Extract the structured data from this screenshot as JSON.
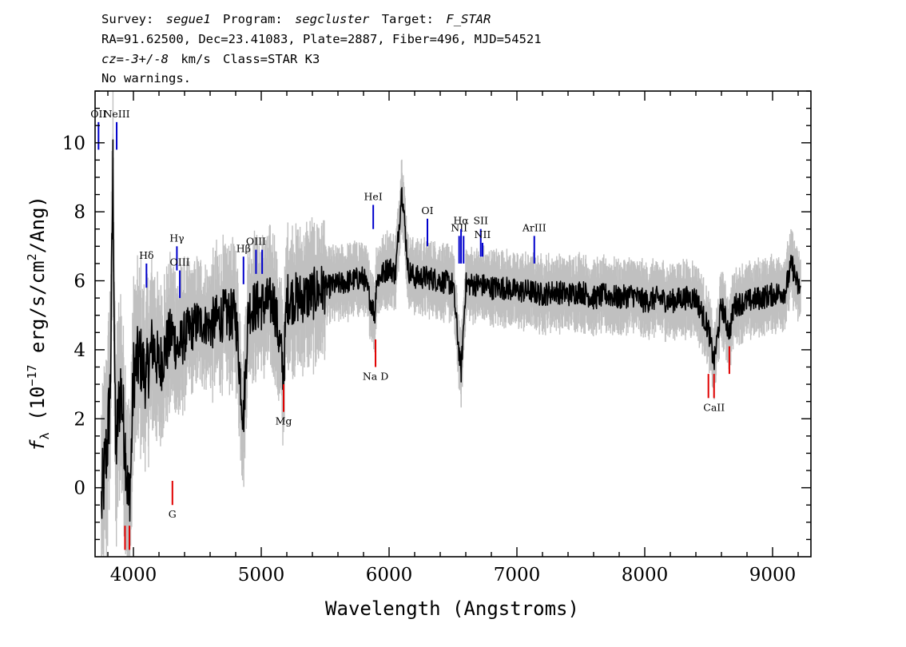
{
  "header": {
    "line1": {
      "survey_label": "Survey:",
      "survey": "segue1",
      "program_label": "Program:",
      "program": "segcluster",
      "target_label": "Target:",
      "target": "F_STAR"
    },
    "line2": "RA=91.62500, Dec=23.41083, Plate=2887, Fiber=496, MJD=54521",
    "line3": {
      "cz_label": "cz",
      "cz_value": "=-3+/-8",
      "cz_unit": "km/s",
      "class_text": "Class=STAR K3"
    },
    "line4": "No warnings."
  },
  "chart_data": {
    "type": "line",
    "xlabel": "Wavelength (Angstroms)",
    "ylabel": {
      "prefix": "f",
      "subscript": "λ",
      "text_pre": " (10",
      "exp": "−17",
      "text_mid": " erg/s/cm",
      "exp2": "2",
      "text_post": "/Ang)"
    },
    "xlim": [
      3700,
      9300
    ],
    "ylim": [
      -2,
      11.5
    ],
    "xticks": [
      4000,
      5000,
      6000,
      7000,
      8000,
      9000
    ],
    "yticks": [
      0,
      2,
      4,
      6,
      8,
      10
    ],
    "grid": false,
    "legend": "none",
    "series": [
      {
        "role": "spectrum",
        "color": "#000000",
        "x": [
          3750,
          3800,
          3820,
          3840,
          3860,
          3880,
          3900,
          3920,
          3940,
          3960,
          3980,
          4000,
          4050,
          4100,
          4150,
          4200,
          4250,
          4300,
          4350,
          4400,
          4450,
          4500,
          4600,
          4700,
          4800,
          4860,
          4900,
          5000,
          5100,
          5175,
          5200,
          5300,
          5400,
          5500,
          5600,
          5700,
          5800,
          5890,
          5900,
          6000,
          6050,
          6100,
          6150,
          6200,
          6300,
          6400,
          6500,
          6563,
          6600,
          6700,
          6800,
          6900,
          7000,
          7100,
          7200,
          7300,
          7400,
          7500,
          7600,
          7700,
          7800,
          7900,
          8000,
          8100,
          8200,
          8300,
          8400,
          8498,
          8542,
          8600,
          8662,
          8700,
          8800,
          8900,
          9000,
          9100,
          9150,
          9200
        ],
        "y": [
          -0.5,
          1.5,
          3.0,
          9.3,
          1.0,
          2.0,
          3.0,
          2.0,
          1.0,
          -0.5,
          0.5,
          3.3,
          3.8,
          3.2,
          4.2,
          3.5,
          4.0,
          4.5,
          4.0,
          4.4,
          4.6,
          4.8,
          4.7,
          5.0,
          5.0,
          2.0,
          5.2,
          5.3,
          5.4,
          3.3,
          5.5,
          5.5,
          5.6,
          5.8,
          5.9,
          6.0,
          6.1,
          5.0,
          6.0,
          6.4,
          6.2,
          8.7,
          6.3,
          6.1,
          6.1,
          6.0,
          5.9,
          3.3,
          5.9,
          5.9,
          5.8,
          5.8,
          5.7,
          5.7,
          5.6,
          5.7,
          5.6,
          5.7,
          5.5,
          5.6,
          5.5,
          5.6,
          5.4,
          5.5,
          5.4,
          5.5,
          5.5,
          4.6,
          3.6,
          5.3,
          4.5,
          5.3,
          5.4,
          5.5,
          5.6,
          5.7,
          6.5,
          5.8
        ]
      }
    ],
    "error_band": {
      "color": "#c0c0c0",
      "sigma_blue": 1.3,
      "sigma_red": 0.35
    },
    "emission_lines": [
      {
        "label": "OII",
        "x": 3727,
        "y0": 9.8,
        "y1": 10.6
      },
      {
        "label": "NeIII",
        "x": 3869,
        "y0": 9.8,
        "y1": 10.6
      },
      {
        "label": "Hδ",
        "x": 4102,
        "y0": 5.8,
        "y1": 6.5
      },
      {
        "label": "Hγ",
        "x": 4340,
        "y0": 6.3,
        "y1": 7.0
      },
      {
        "label": "OIII",
        "x": 4363,
        "y0": 5.5,
        "y1": 6.3
      },
      {
        "label": "Hβ",
        "x": 4861,
        "y0": 5.9,
        "y1": 6.7
      },
      {
        "label": "OIII",
        "x": 4959,
        "y0": 6.2,
        "y1": 6.9
      },
      {
        "label": "",
        "x": 5007,
        "y0": 6.2,
        "y1": 6.9
      },
      {
        "label": "HeI",
        "x": 5876,
        "y0": 7.5,
        "y1": 8.2
      },
      {
        "label": "OI",
        "x": 6300,
        "y0": 7.0,
        "y1": 7.8
      },
      {
        "label": "NII",
        "x": 6548,
        "y0": 6.5,
        "y1": 7.3
      },
      {
        "label": "Hα",
        "x": 6563,
        "y0": 6.5,
        "y1": 7.5
      },
      {
        "label": "",
        "x": 6583,
        "y0": 6.5,
        "y1": 7.3
      },
      {
        "label": "SII",
        "x": 6717,
        "y0": 6.7,
        "y1": 7.5
      },
      {
        "label": "NII",
        "x": 6731,
        "y0": 6.7,
        "y1": 7.1
      },
      {
        "label": "ArIII",
        "x": 7136,
        "y0": 6.5,
        "y1": 7.3
      }
    ],
    "absorption_lines": [
      {
        "label": "",
        "x": 3934,
        "y0": -1.8,
        "y1": -1.1
      },
      {
        "label": "",
        "x": 3969,
        "y0": -1.8,
        "y1": -1.1
      },
      {
        "label": "G",
        "x": 4305,
        "y0": -0.5,
        "y1": 0.2
      },
      {
        "label": "Mg",
        "x": 5175,
        "y0": 2.2,
        "y1": 3.0
      },
      {
        "label": "Na D",
        "x": 5894,
        "y0": 3.5,
        "y1": 4.3
      },
      {
        "label": "",
        "x": 8498,
        "y0": 2.6,
        "y1": 3.3
      },
      {
        "label": "CaII",
        "x": 8542,
        "y0": 2.6,
        "y1": 3.3
      },
      {
        "label": "",
        "x": 8662,
        "y0": 3.3,
        "y1": 4.1
      }
    ],
    "colors": {
      "emission": "#0000cc",
      "absorption": "#e00000",
      "spectrum": "#000000",
      "error": "#c0c0c0"
    }
  }
}
